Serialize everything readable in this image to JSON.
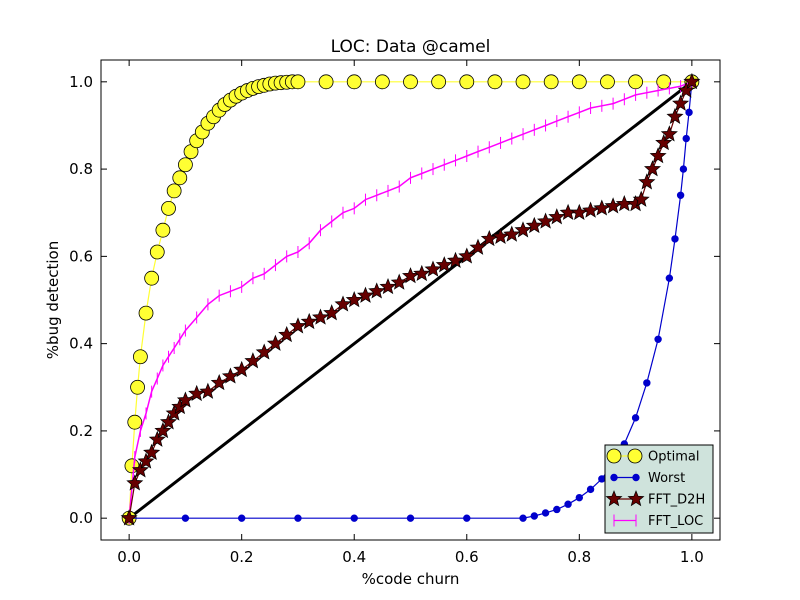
{
  "chart_data": {
    "type": "line",
    "title": "LOC: Data @camel",
    "xlabel": "%code churn",
    "ylabel": "%bug detection",
    "xlim": [
      -0.05,
      1.05
    ],
    "ylim": [
      -0.05,
      1.05
    ],
    "xticks": [
      0.0,
      0.2,
      0.4,
      0.6,
      0.8,
      1.0
    ],
    "yticks": [
      0.0,
      0.2,
      0.4,
      0.6,
      0.8,
      1.0
    ],
    "xtick_labels": [
      "0.0",
      "0.2",
      "0.4",
      "0.6",
      "0.8",
      "1.0"
    ],
    "ytick_labels": [
      "0.0",
      "0.2",
      "0.4",
      "0.6",
      "0.8",
      "1.0"
    ],
    "grid": false,
    "legend_position": "bottom-right",
    "series": [
      {
        "name": "Optimal",
        "marker": "circle",
        "color": "#ffff33",
        "edge_color": "#000000",
        "x": [
          0.0,
          0.005,
          0.01,
          0.015,
          0.02,
          0.03,
          0.04,
          0.05,
          0.06,
          0.07,
          0.08,
          0.09,
          0.1,
          0.11,
          0.12,
          0.13,
          0.14,
          0.15,
          0.16,
          0.17,
          0.18,
          0.19,
          0.2,
          0.21,
          0.22,
          0.23,
          0.24,
          0.25,
          0.26,
          0.27,
          0.28,
          0.29,
          0.3,
          0.35,
          0.4,
          0.45,
          0.5,
          0.55,
          0.6,
          0.65,
          0.7,
          0.75,
          0.8,
          0.85,
          0.9,
          0.95,
          1.0
        ],
        "y": [
          0.0,
          0.12,
          0.22,
          0.3,
          0.37,
          0.47,
          0.55,
          0.61,
          0.66,
          0.71,
          0.75,
          0.78,
          0.81,
          0.84,
          0.865,
          0.885,
          0.905,
          0.92,
          0.935,
          0.948,
          0.958,
          0.967,
          0.974,
          0.98,
          0.985,
          0.989,
          0.992,
          0.995,
          0.997,
          0.998,
          0.999,
          1.0,
          1.0,
          1.0,
          1.0,
          1.0,
          1.0,
          1.0,
          1.0,
          1.0,
          1.0,
          1.0,
          1.0,
          1.0,
          1.0,
          1.0,
          1.0
        ]
      },
      {
        "name": "Worst",
        "marker": "dot",
        "color": "#0000cc",
        "x": [
          0.0,
          0.1,
          0.2,
          0.3,
          0.4,
          0.5,
          0.6,
          0.7,
          0.72,
          0.74,
          0.76,
          0.78,
          0.8,
          0.82,
          0.84,
          0.86,
          0.88,
          0.9,
          0.92,
          0.94,
          0.96,
          0.97,
          0.98,
          0.985,
          0.99,
          0.995,
          1.0
        ],
        "y": [
          0.0,
          0.0,
          0.0,
          0.0,
          0.0,
          0.0,
          0.0,
          0.0,
          0.005,
          0.012,
          0.02,
          0.032,
          0.047,
          0.066,
          0.09,
          0.125,
          0.17,
          0.23,
          0.31,
          0.41,
          0.55,
          0.64,
          0.74,
          0.8,
          0.87,
          0.93,
          1.0
        ]
      },
      {
        "name": "FFT_D2H",
        "marker": "star",
        "color": "#660000",
        "x": [
          0.0,
          0.01,
          0.02,
          0.03,
          0.04,
          0.05,
          0.06,
          0.07,
          0.08,
          0.09,
          0.1,
          0.12,
          0.14,
          0.16,
          0.18,
          0.2,
          0.22,
          0.24,
          0.26,
          0.28,
          0.3,
          0.32,
          0.34,
          0.36,
          0.38,
          0.4,
          0.42,
          0.44,
          0.46,
          0.48,
          0.5,
          0.52,
          0.54,
          0.56,
          0.58,
          0.6,
          0.62,
          0.64,
          0.66,
          0.68,
          0.7,
          0.72,
          0.74,
          0.76,
          0.78,
          0.8,
          0.82,
          0.84,
          0.86,
          0.88,
          0.9,
          0.91,
          0.92,
          0.93,
          0.94,
          0.95,
          0.96,
          0.97,
          0.98,
          0.99,
          1.0
        ],
        "y": [
          0.0,
          0.08,
          0.11,
          0.13,
          0.15,
          0.18,
          0.2,
          0.22,
          0.24,
          0.255,
          0.27,
          0.285,
          0.29,
          0.31,
          0.325,
          0.34,
          0.36,
          0.38,
          0.4,
          0.42,
          0.44,
          0.45,
          0.46,
          0.47,
          0.49,
          0.5,
          0.51,
          0.52,
          0.53,
          0.54,
          0.555,
          0.56,
          0.57,
          0.58,
          0.59,
          0.6,
          0.62,
          0.64,
          0.645,
          0.65,
          0.66,
          0.67,
          0.68,
          0.69,
          0.7,
          0.7,
          0.705,
          0.71,
          0.715,
          0.72,
          0.72,
          0.73,
          0.77,
          0.8,
          0.83,
          0.86,
          0.88,
          0.92,
          0.95,
          0.98,
          1.0
        ]
      },
      {
        "name": "FFT_LOC",
        "marker": "vline",
        "color": "#ff00ff",
        "x": [
          0.0,
          0.01,
          0.02,
          0.03,
          0.04,
          0.05,
          0.06,
          0.07,
          0.08,
          0.09,
          0.1,
          0.12,
          0.14,
          0.16,
          0.18,
          0.2,
          0.22,
          0.24,
          0.26,
          0.28,
          0.3,
          0.32,
          0.34,
          0.36,
          0.38,
          0.4,
          0.42,
          0.44,
          0.46,
          0.48,
          0.5,
          0.52,
          0.54,
          0.56,
          0.58,
          0.6,
          0.62,
          0.64,
          0.66,
          0.68,
          0.7,
          0.72,
          0.74,
          0.76,
          0.78,
          0.8,
          0.82,
          0.84,
          0.86,
          0.88,
          0.9,
          0.92,
          0.94,
          0.96,
          0.98,
          1.0
        ],
        "y": [
          0.0,
          0.14,
          0.2,
          0.24,
          0.29,
          0.32,
          0.35,
          0.37,
          0.39,
          0.41,
          0.43,
          0.46,
          0.49,
          0.51,
          0.52,
          0.53,
          0.55,
          0.56,
          0.58,
          0.6,
          0.61,
          0.63,
          0.66,
          0.68,
          0.7,
          0.71,
          0.73,
          0.74,
          0.75,
          0.76,
          0.78,
          0.79,
          0.8,
          0.81,
          0.82,
          0.83,
          0.84,
          0.85,
          0.86,
          0.87,
          0.88,
          0.89,
          0.9,
          0.91,
          0.92,
          0.93,
          0.94,
          0.945,
          0.95,
          0.96,
          0.97,
          0.975,
          0.98,
          0.985,
          0.99,
          1.0
        ]
      },
      {
        "name": "",
        "marker": "none",
        "color": "#000000",
        "x": [
          0.0,
          1.0
        ],
        "y": [
          0.0,
          1.0
        ]
      }
    ]
  }
}
